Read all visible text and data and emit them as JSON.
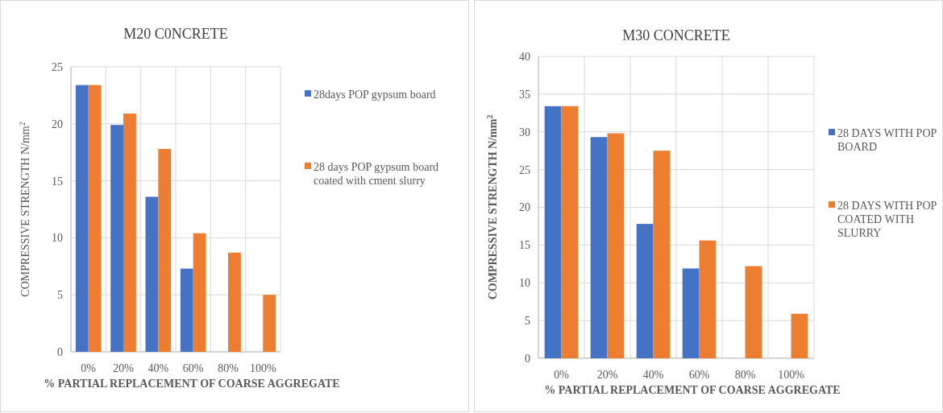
{
  "chart_data": [
    {
      "type": "bar",
      "title": "M20 C0NCRETE",
      "xlabel": "% PARTIAL REPLACEMENT OF COARSE AGGREGATE",
      "ylabel": "COMPRESSIVE STRENGTH N/mm$^{2}$",
      "categories": [
        "0%",
        "20%",
        "40%",
        "60%",
        "80%",
        "100%"
      ],
      "series": [
        {
          "name": "28days POP gypsum board",
          "color": "#4472c4",
          "values": [
            23.4,
            19.9,
            13.6,
            7.3,
            null,
            null
          ]
        },
        {
          "name": "28 days POP gypsum board coated with cment slurry",
          "color": "#ed7d31",
          "values": [
            23.4,
            20.9,
            17.8,
            10.4,
            8.7,
            5.0
          ]
        }
      ],
      "ylim": [
        0,
        25
      ],
      "yticks": [
        0,
        5,
        10,
        15,
        20,
        25
      ],
      "grid": true,
      "legend": "right"
    },
    {
      "type": "bar",
      "title": "M30 CONCRETE",
      "xlabel": "% PARTIAL REPLACEMENT OF COARSE AGGREGATE",
      "ylabel": "COMPRESSIVE STRENGTH  N/mm$^{2}$",
      "categories": [
        "0%",
        "20%",
        "40%",
        "60%",
        "80%",
        "100%"
      ],
      "series": [
        {
          "name": "28 DAYS WITH POP BOARD",
          "color": "#4472c4",
          "values": [
            33.4,
            29.3,
            17.8,
            11.9,
            null,
            null
          ]
        },
        {
          "name": "28 DAYS WITH POP COATED WITH SLURRY",
          "color": "#ed7d31",
          "values": [
            33.4,
            29.8,
            27.5,
            15.6,
            12.2,
            5.9
          ]
        }
      ],
      "ylim": [
        0,
        40
      ],
      "yticks": [
        0,
        5,
        10,
        15,
        20,
        25,
        30,
        35,
        40
      ],
      "grid": true,
      "legend": "right"
    }
  ]
}
